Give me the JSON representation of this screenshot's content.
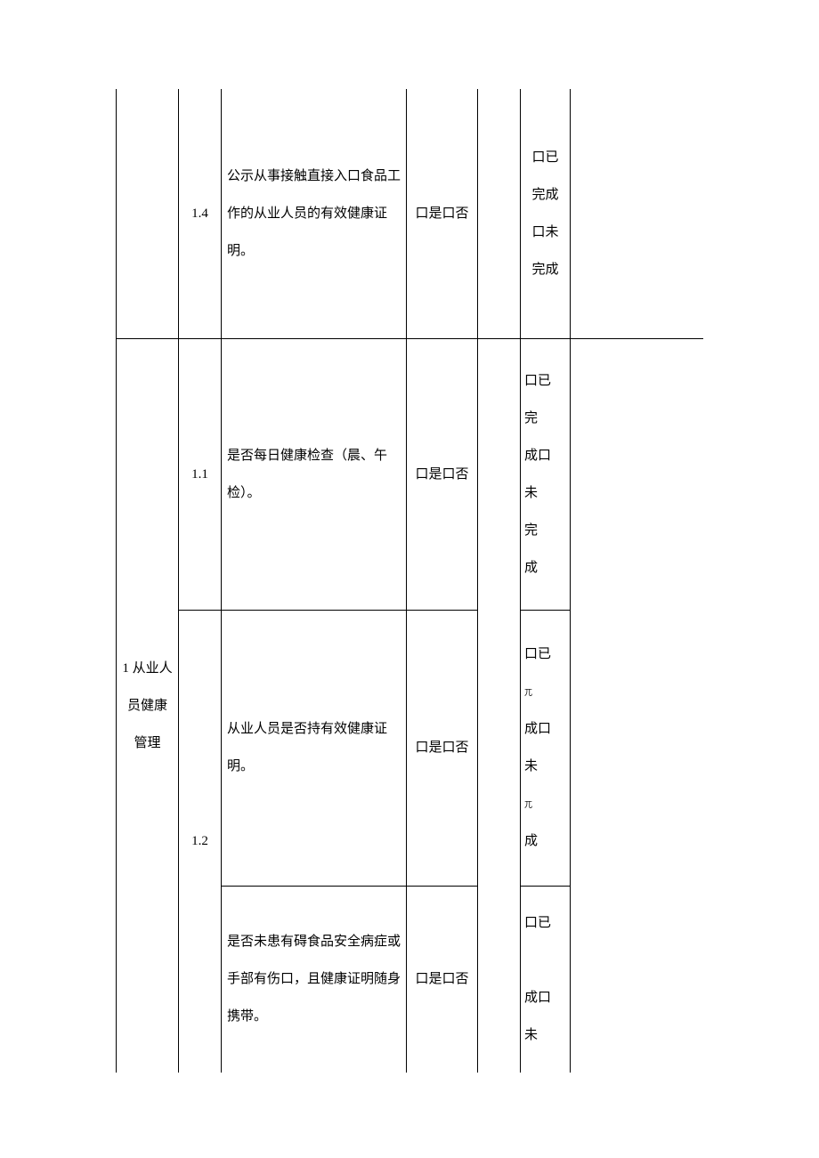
{
  "rows": [
    {
      "category": "",
      "num": "1.4",
      "item": "公示从事接触直接入口食品工作的从业人员的有效健康证明。",
      "check": "口是口否",
      "done": "口已完成口未完成"
    },
    {
      "category": "1 从业人员健康管理",
      "num": "1.1",
      "item": "是否每日健康检查（晨、午检）。",
      "check": "口是口否",
      "done": "口已\n完\n成口\n未\n完\n成"
    },
    {
      "num": "1.2",
      "item": "从业人员是否持有效健康证明。",
      "check": "口是口否",
      "done_parts": [
        "口已",
        "兀",
        "成口",
        "未",
        "兀",
        "成"
      ]
    },
    {
      "item": "是否未患有碍食品安全病症或手部有伤口，且健康证明随身携带。",
      "check": "口是口否",
      "done": "口已\n\n成口\n未"
    }
  ],
  "colors": {
    "border": "#000000",
    "bg": "#ffffff",
    "text": "#000000"
  }
}
